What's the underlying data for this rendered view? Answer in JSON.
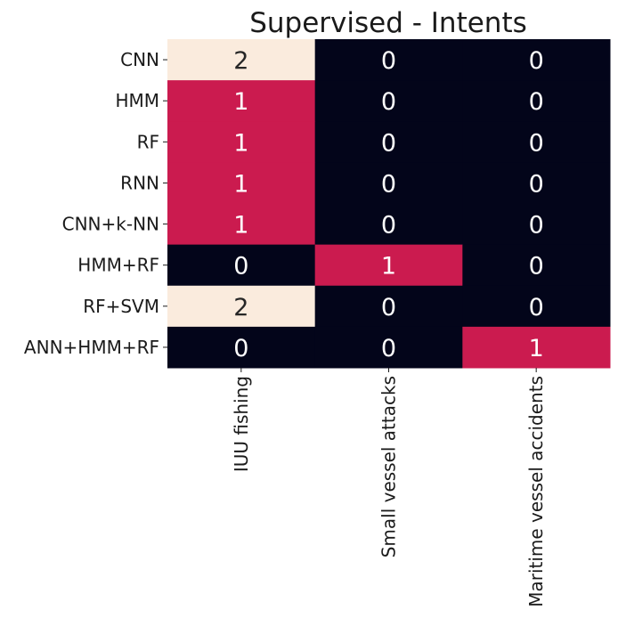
{
  "chart_data": {
    "type": "heatmap",
    "title": "Supervised - Intents",
    "rows": [
      "CNN",
      "HMM",
      "RF",
      "RNN",
      "CNN+k-NN",
      "HMM+RF",
      "RF+SVM",
      "ANN+HMM+RF"
    ],
    "columns": [
      "IUU fishing",
      "Small vessel attacks",
      "Maritime vessel accidents"
    ],
    "values": [
      [
        2,
        0,
        0
      ],
      [
        1,
        0,
        0
      ],
      [
        1,
        0,
        0
      ],
      [
        1,
        0,
        0
      ],
      [
        1,
        0,
        0
      ],
      [
        0,
        1,
        0
      ],
      [
        2,
        0,
        0
      ],
      [
        0,
        0,
        1
      ]
    ],
    "colorbar": false,
    "colors": {
      "0": "#03051a",
      "1": "#cb1b4f",
      "2": "#faebdd"
    },
    "annotation_colors": {
      "0": "#ffffff",
      "1": "#ffffff",
      "2": "#262626"
    }
  }
}
